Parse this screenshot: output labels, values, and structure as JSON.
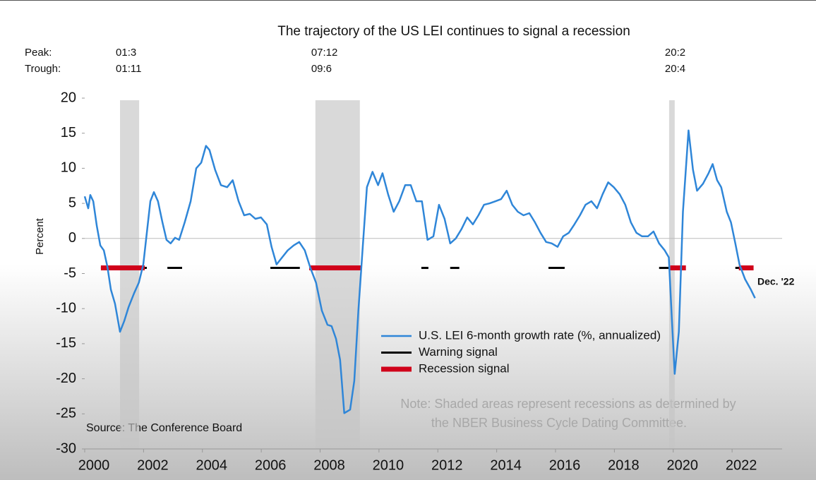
{
  "chart_data": {
    "type": "line",
    "title": "The trajectory of the US LEI continues to signal a recession",
    "y_label": "Percent",
    "xlim": [
      2000,
      2023.7
    ],
    "ylim": [
      -30,
      20
    ],
    "xticks": [
      2000,
      2002,
      2004,
      2006,
      2008,
      2010,
      2012,
      2014,
      2016,
      2018,
      2020,
      2022
    ],
    "yticks": [
      -30,
      -25,
      -20,
      -15,
      -10,
      -5,
      0,
      5,
      10,
      15,
      20
    ],
    "series": [
      {
        "name": "U.S. LEI 6-month growth rate (%, annualized)",
        "color": "#2f86d8",
        "x": [
          2000.0,
          2000.12,
          2000.19,
          2000.29,
          2000.41,
          2000.53,
          2000.65,
          2000.77,
          2000.89,
          2001.03,
          2001.2,
          2001.34,
          2001.49,
          2001.68,
          2001.84,
          2001.99,
          2002.11,
          2002.23,
          2002.35,
          2002.49,
          2002.64,
          2002.78,
          2002.92,
          2003.07,
          2003.21,
          2003.4,
          2003.6,
          2003.79,
          2003.96,
          2004.12,
          2004.24,
          2004.43,
          2004.63,
          2004.84,
          2005.03,
          2005.23,
          2005.42,
          2005.61,
          2005.8,
          2005.99,
          2006.19,
          2006.35,
          2006.52,
          2006.71,
          2006.9,
          2007.1,
          2007.29,
          2007.48,
          2007.67,
          2007.86,
          2008.06,
          2008.25,
          2008.39,
          2008.54,
          2008.68,
          2008.82,
          2009.02,
          2009.16,
          2009.3,
          2009.45,
          2009.59,
          2009.78,
          2009.97,
          2010.12,
          2010.31,
          2010.5,
          2010.69,
          2010.89,
          2011.08,
          2011.27,
          2011.46,
          2011.65,
          2011.85,
          2012.04,
          2012.23,
          2012.42,
          2012.61,
          2012.8,
          2013.0,
          2013.19,
          2013.38,
          2013.57,
          2013.76,
          2013.96,
          2014.15,
          2014.34,
          2014.53,
          2014.72,
          2014.91,
          2015.11,
          2015.3,
          2015.49,
          2015.68,
          2015.87,
          2016.07,
          2016.26,
          2016.45,
          2016.64,
          2016.83,
          2017.02,
          2017.22,
          2017.41,
          2017.6,
          2017.79,
          2017.98,
          2018.18,
          2018.37,
          2018.56,
          2018.75,
          2018.94,
          2019.14,
          2019.33,
          2019.52,
          2019.71,
          2019.85,
          2019.95,
          2020.05,
          2020.19,
          2020.33,
          2020.52,
          2020.67,
          2020.81,
          2021.01,
          2021.2,
          2021.34,
          2021.49,
          2021.63,
          2021.82,
          2021.96,
          2022.11,
          2022.25,
          2022.44,
          2022.64,
          2022.78
        ],
        "values": [
          6.0,
          4.3,
          6.2,
          5.3,
          1.8,
          -1.0,
          -1.7,
          -4.0,
          -7.3,
          -9.3,
          -13.3,
          -11.8,
          -9.8,
          -7.8,
          -6.3,
          -3.7,
          0.8,
          5.3,
          6.6,
          5.3,
          2.3,
          -0.2,
          -0.7,
          0.1,
          -0.2,
          2.3,
          5.3,
          10.0,
          10.8,
          13.2,
          12.6,
          9.8,
          7.6,
          7.3,
          8.3,
          5.3,
          3.3,
          3.5,
          2.8,
          3.0,
          2.0,
          -1.2,
          -3.7,
          -2.7,
          -1.7,
          -1.0,
          -0.5,
          -1.7,
          -4.2,
          -6.3,
          -10.3,
          -12.3,
          -12.5,
          -14.3,
          -17.3,
          -24.9,
          -24.4,
          -20.3,
          -10.3,
          -1.2,
          7.3,
          9.5,
          7.6,
          9.3,
          6.3,
          3.8,
          5.3,
          7.6,
          7.6,
          5.3,
          5.3,
          -0.2,
          0.3,
          4.8,
          2.8,
          -0.7,
          0.0,
          1.3,
          3.0,
          2.0,
          3.3,
          4.8,
          5.0,
          5.3,
          5.6,
          6.8,
          4.8,
          3.8,
          3.3,
          3.6,
          2.3,
          0.8,
          -0.5,
          -0.7,
          -1.2,
          0.3,
          0.8,
          2.0,
          3.3,
          4.8,
          5.3,
          4.3,
          6.3,
          8.0,
          7.3,
          6.3,
          4.8,
          2.3,
          0.8,
          0.3,
          0.3,
          1.0,
          -0.7,
          -1.7,
          -2.7,
          -11.3,
          -19.3,
          -13.3,
          3.8,
          15.4,
          9.8,
          6.8,
          7.8,
          9.3,
          10.6,
          8.3,
          7.3,
          3.8,
          2.3,
          -0.7,
          -3.7,
          -5.8,
          -7.3,
          -8.5
        ]
      }
    ],
    "signals": [
      {
        "name": "Warning signal",
        "color": "#000000",
        "level": -4.2,
        "segments": [
          [
            2000.55,
            2002.11
          ],
          [
            2002.81,
            2003.31
          ],
          [
            2006.31,
            2007.31
          ],
          [
            2011.44,
            2011.68
          ],
          [
            2012.42,
            2012.73
          ],
          [
            2015.76,
            2016.31
          ],
          [
            2019.52,
            2019.86
          ],
          [
            2022.11,
            2022.66
          ]
        ]
      },
      {
        "name": "Recession signal",
        "color": "#d0021b",
        "level": -4.2,
        "segments": [
          [
            2000.55,
            2002.04
          ],
          [
            2007.63,
            2009.4
          ],
          [
            2019.9,
            2020.43
          ],
          [
            2022.23,
            2022.73
          ]
        ]
      }
    ],
    "peak_label": "Peak:",
    "trough_label": "Trough:",
    "recessions": [
      {
        "peak": "01:3",
        "trough": "01:11",
        "start": 2001.2,
        "end": 2001.85
      },
      {
        "peak": "07:12",
        "trough": "09:6",
        "start": 2007.84,
        "end": 2009.35
      },
      {
        "peak": "20:2",
        "trough": "20:4",
        "start": 2019.86,
        "end": 2020.05
      }
    ],
    "end_label": "Dec. '22",
    "note": [
      "Note: Shaded areas represent recessions as determined by",
      "the NBER Business Cycle Dating Committee."
    ],
    "source": "Source: The Conference Board"
  }
}
